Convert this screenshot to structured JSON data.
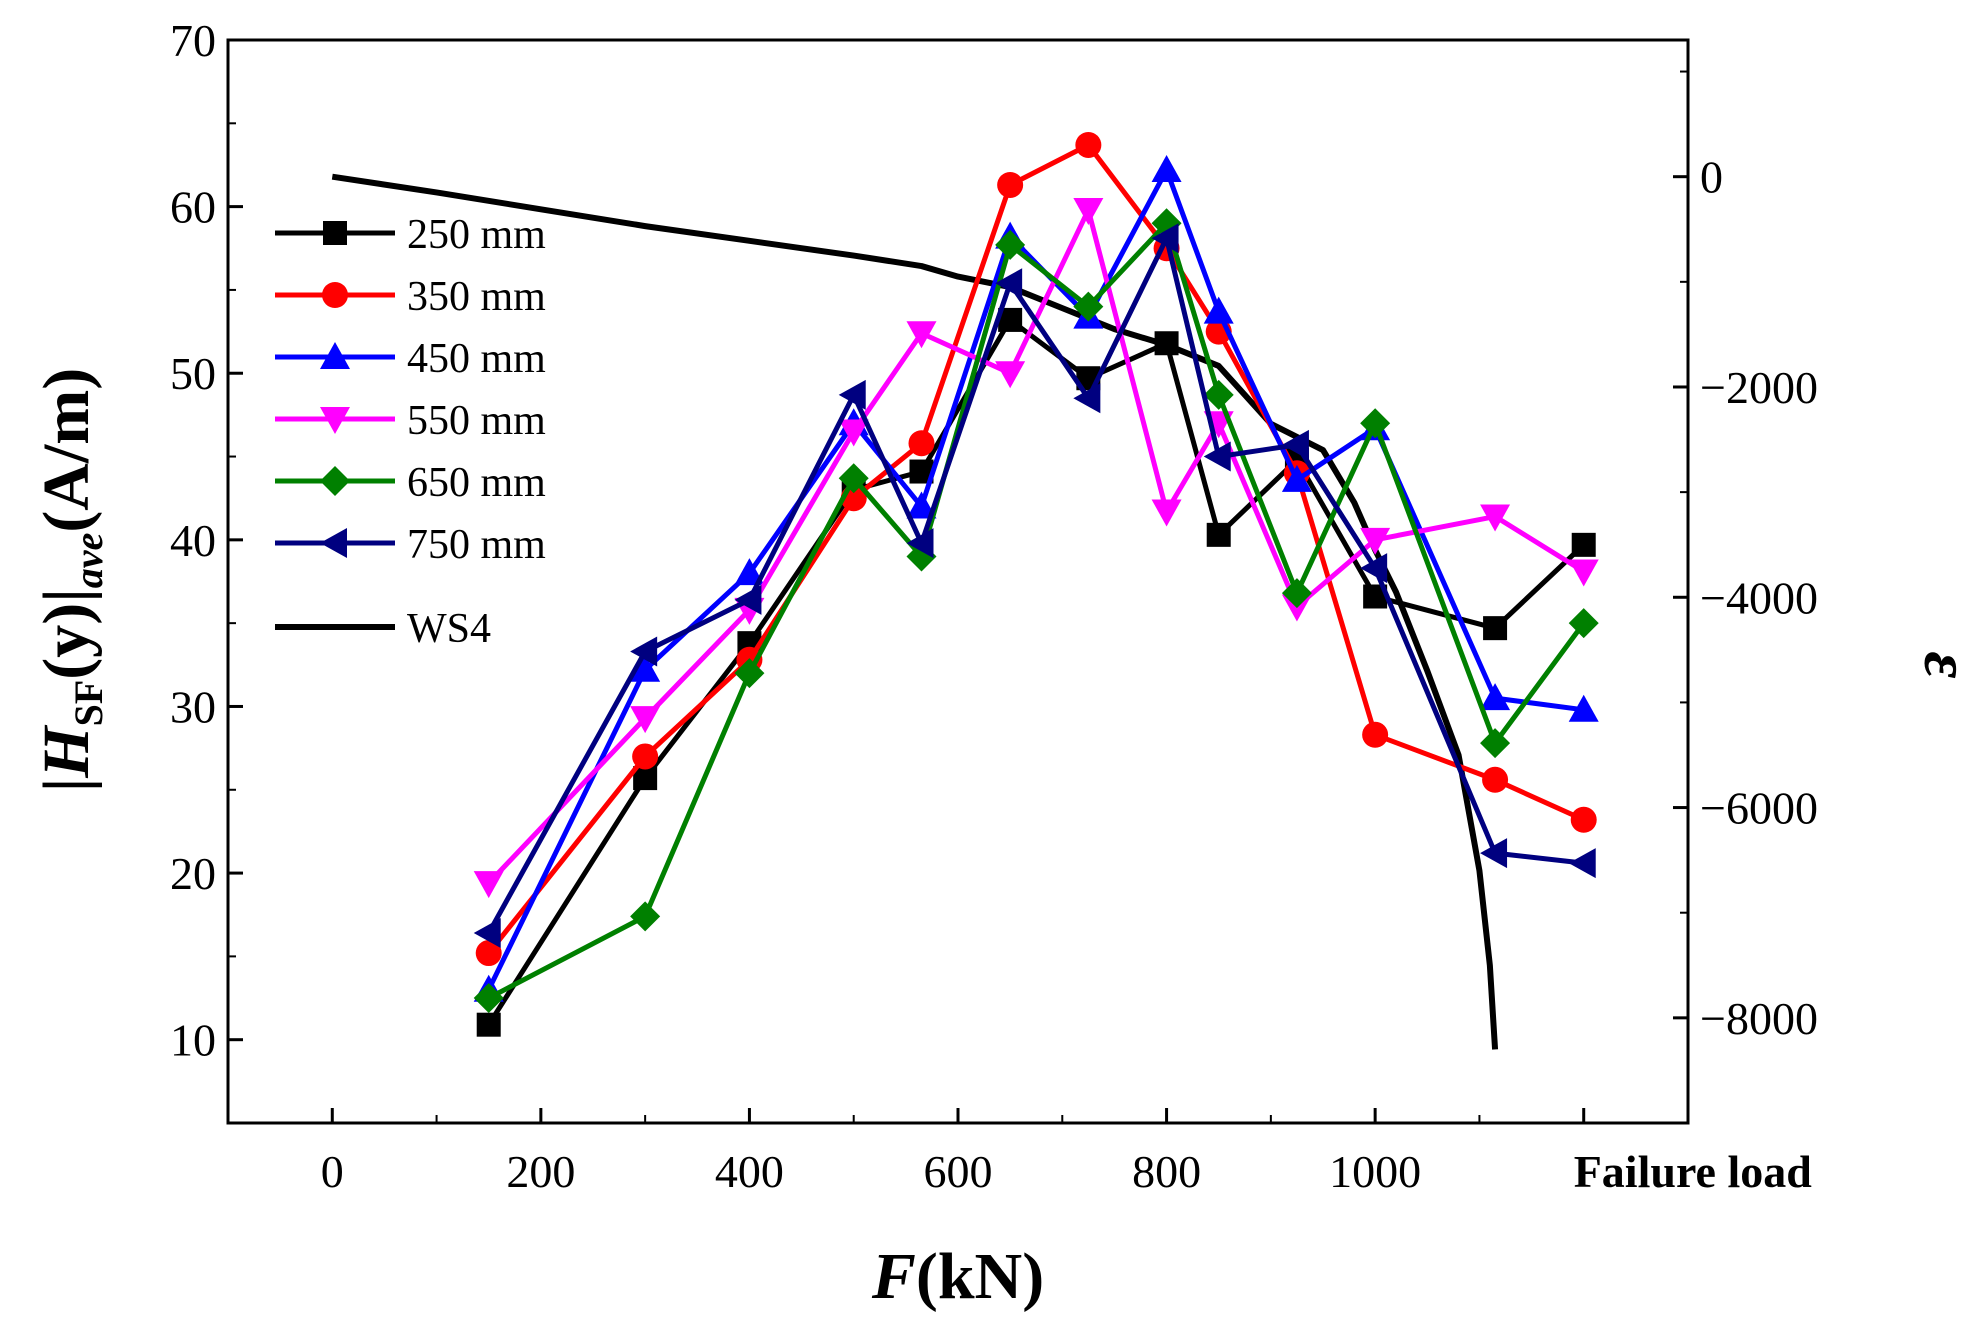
{
  "chart_data": {
    "type": "line",
    "x": [
      150,
      300,
      400,
      500,
      565,
      650,
      725,
      800,
      850,
      925,
      1000,
      1115,
      1200
    ],
    "x_ticks": [
      {
        "value": 0,
        "label": "0"
      },
      {
        "value": 200,
        "label": "200"
      },
      {
        "value": 400,
        "label": "400"
      },
      {
        "value": 600,
        "label": "600"
      },
      {
        "value": 800,
        "label": "800"
      },
      {
        "value": 1000,
        "label": "1000"
      },
      {
        "value": 1200,
        "label": "Failure load"
      }
    ],
    "xlim": [
      -100,
      1300
    ],
    "ylim": [
      5,
      70
    ],
    "y_ticks": [
      "10",
      "20",
      "30",
      "40",
      "50",
      "60",
      "70"
    ],
    "y2lim": [
      -9000,
      1300
    ],
    "y2_ticks": [
      "0",
      "−2000",
      "−4000",
      "−6000",
      "−8000"
    ],
    "xlabel": {
      "italic": "F",
      "rest": "(kN)"
    },
    "ylabel": {
      "open": "|",
      "italic": "H",
      "sub": "SF",
      "mid": "(y)|",
      "sub2": "ave",
      "close": "(A/m)"
    },
    "y2label": "ε",
    "legend_position": "top-left",
    "series": [
      {
        "name": "250 mm",
        "color": "#000000",
        "marker": "square",
        "values": [
          10.9,
          25.7,
          33.8,
          43.0,
          44.1,
          53.2,
          49.7,
          51.8,
          40.3,
          44.8,
          36.6,
          34.7,
          39.7
        ]
      },
      {
        "name": "350 mm",
        "color": "#ff0000",
        "marker": "circle",
        "values": [
          15.2,
          27.0,
          32.8,
          42.5,
          45.8,
          61.3,
          63.7,
          57.5,
          52.5,
          44.0,
          28.3,
          25.6,
          23.2
        ]
      },
      {
        "name": "450 mm",
        "color": "#0000ff",
        "marker": "triangle-up",
        "values": [
          13.0,
          32.2,
          38.0,
          47.0,
          42.0,
          58.2,
          53.4,
          62.2,
          53.7,
          43.6,
          46.7,
          30.5,
          29.8
        ]
      },
      {
        "name": "550 mm",
        "color": "#ff00ff",
        "marker": "triangle-down",
        "values": [
          19.4,
          29.3,
          35.8,
          46.5,
          52.4,
          50.0,
          59.8,
          41.7,
          47.0,
          36.0,
          40.0,
          41.4,
          38.1
        ]
      },
      {
        "name": "650 mm",
        "color": "#008000",
        "marker": "diamond",
        "values": [
          12.5,
          17.4,
          32.0,
          43.7,
          39.0,
          57.7,
          54.0,
          59.0,
          48.7,
          36.8,
          47.0,
          27.8,
          35.0
        ]
      },
      {
        "name": "750 mm",
        "color": "#000080",
        "marker": "triangle-left",
        "values": [
          16.4,
          33.3,
          36.4,
          48.7,
          39.8,
          55.4,
          48.5,
          58.1,
          45.0,
          45.7,
          38.3,
          21.2,
          20.6
        ]
      }
    ],
    "strain_series": {
      "name": "WS4",
      "color": "#000000",
      "axis": "right",
      "x": [
        0,
        100,
        200,
        300,
        400,
        500,
        565,
        600,
        650,
        700,
        750,
        800,
        850,
        900,
        950,
        980,
        1000,
        1020,
        1050,
        1080,
        1100,
        1110,
        1115
      ],
      "values": [
        0,
        -150,
        -310,
        -470,
        -610,
        -750,
        -850,
        -950,
        -1050,
        -1250,
        -1450,
        -1600,
        -1800,
        -2350,
        -2600,
        -3100,
        -3550,
        -3950,
        -4700,
        -5500,
        -6600,
        -7500,
        -8300
      ]
    }
  }
}
